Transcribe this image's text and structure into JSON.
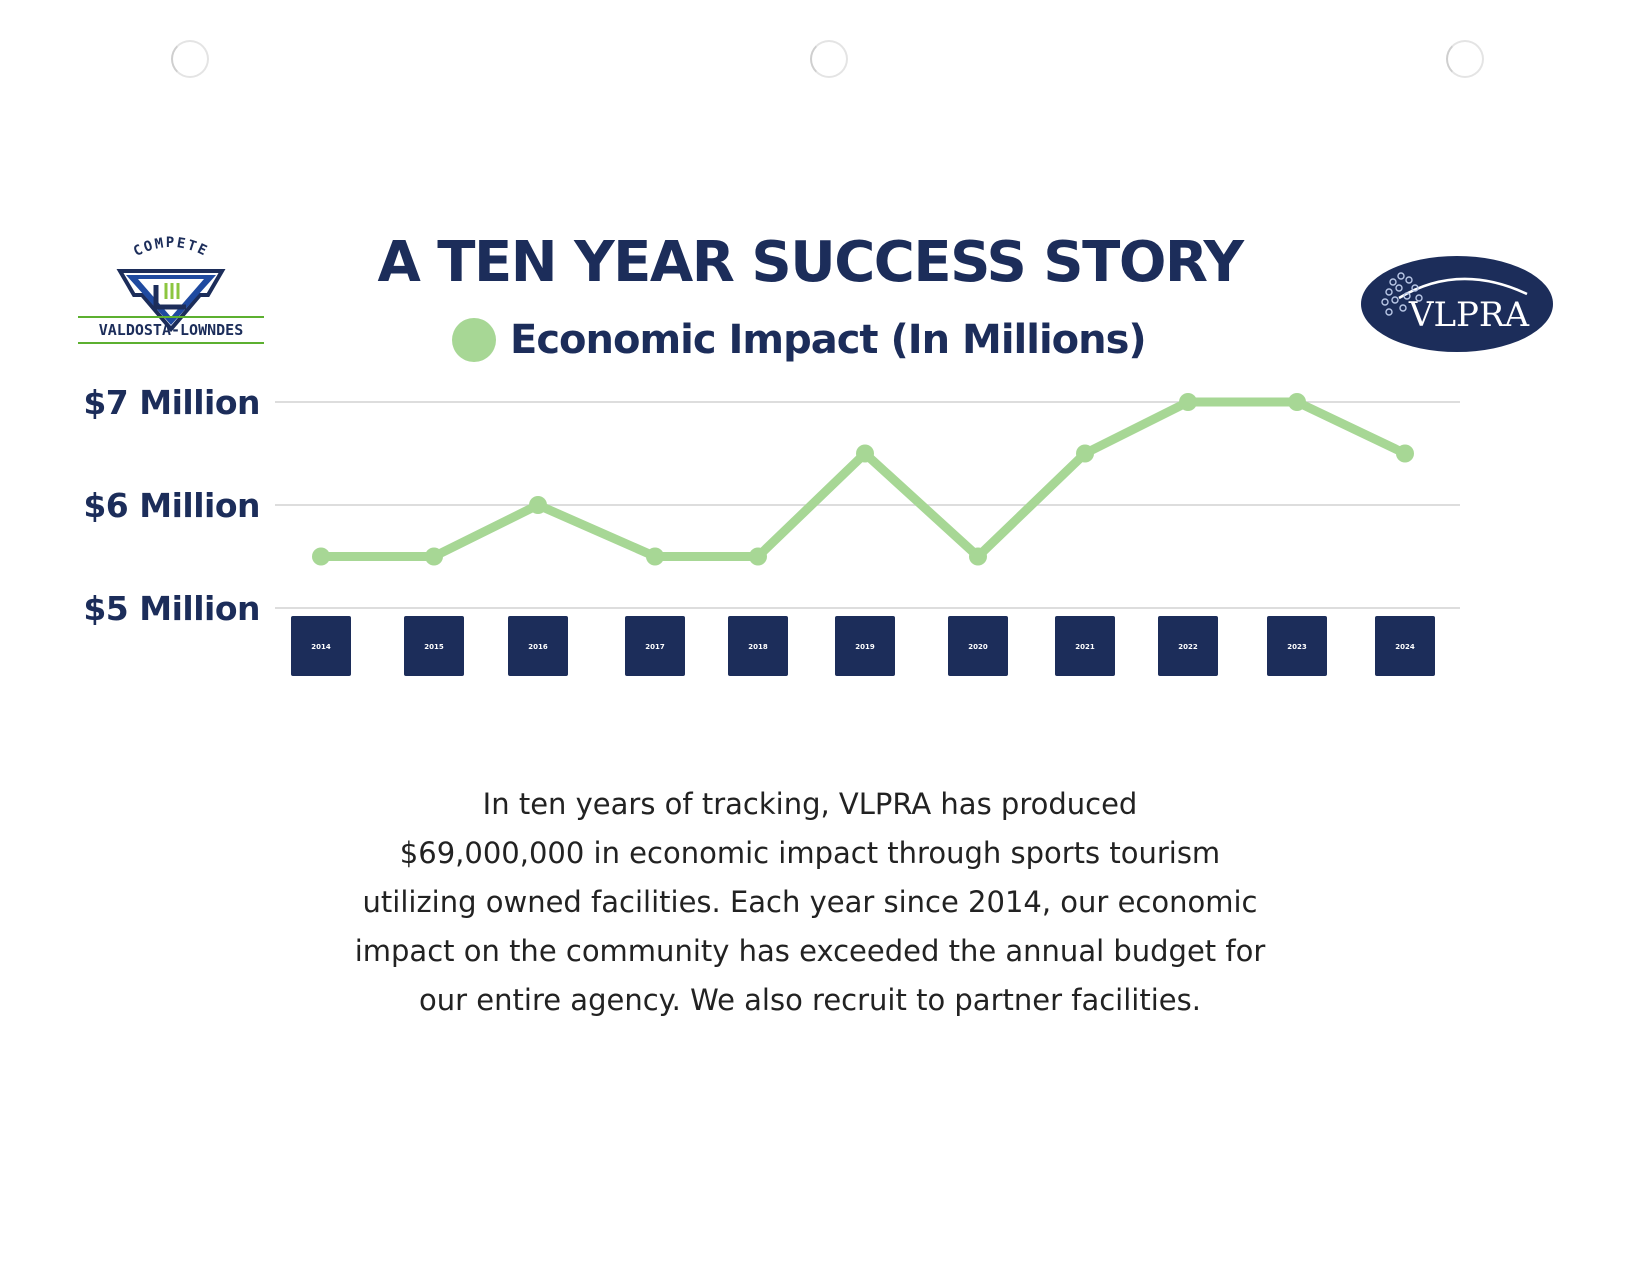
{
  "header": {
    "title": "A TEN YEAR SUCCESS STORY",
    "legend_label": "Economic Impact (In Millions)"
  },
  "logos": {
    "left": {
      "top_text": "COMPETE",
      "bottom_text": "VALDOSTA-LOWNDES",
      "monogram": "VL"
    },
    "right": {
      "text": "VLPRA"
    }
  },
  "chart_data": {
    "type": "line",
    "title": "A TEN YEAR SUCCESS STORY",
    "series": [
      {
        "name": "Economic Impact (In Millions)",
        "color": "#a7d795",
        "values": [
          5.5,
          5.5,
          6.0,
          5.5,
          5.5,
          6.5,
          5.5,
          6.5,
          7.0,
          7.0,
          6.5
        ]
      }
    ],
    "categories": [
      "2014",
      "2015",
      "2016",
      "2017",
      "2018",
      "2019",
      "2020",
      "2021",
      "2022",
      "2023",
      "2024"
    ],
    "y_ticks": [
      {
        "value": 7,
        "label": "$7 Million"
      },
      {
        "value": 6,
        "label": "$6 Million"
      },
      {
        "value": 5,
        "label": "$5 Million"
      }
    ],
    "ylim": [
      5,
      7
    ],
    "grid": true,
    "colors": {
      "line": "#a7d795",
      "category_box": "#1c2d5a",
      "grid": "#d2d2d2",
      "text": "#1c2d5a"
    }
  },
  "body": {
    "lines": [
      "In ten years of tracking, VLPRA has produced",
      "$69,000,000 in economic impact through sports tourism",
      "utilizing owned facilities. Each year since 2014, our economic",
      "impact on the community has exceeded the annual budget for",
      "our entire agency. We also recruit to partner facilities."
    ]
  }
}
